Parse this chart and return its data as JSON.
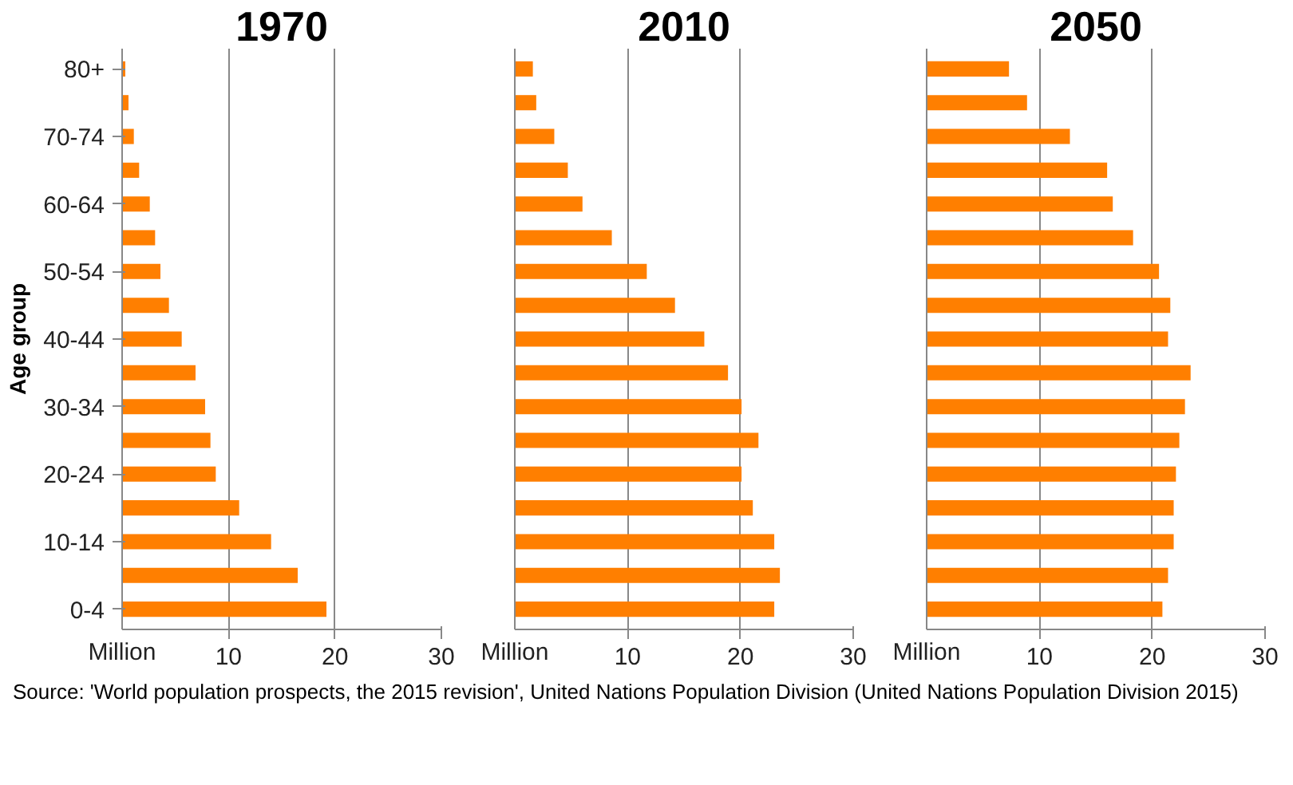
{
  "chart_data": [
    {
      "type": "bar",
      "orientation": "horizontal",
      "title": "1970",
      "ylabel": "Age group",
      "categories": [
        "80+",
        null,
        "70-74",
        null,
        "60-64",
        null,
        "50-54",
        null,
        "40-44",
        null,
        "30-34",
        null,
        "20-24",
        null,
        "10-14",
        null,
        "0-4"
      ],
      "values": [
        0.3,
        0.6,
        1.1,
        1.6,
        2.6,
        3.1,
        3.6,
        4.4,
        5.6,
        6.9,
        7.8,
        8.3,
        8.8,
        11.0,
        14.0,
        16.5,
        19.2
      ],
      "color": "#ff7f00",
      "xlim": [
        0,
        30
      ],
      "xticks": [
        10,
        20,
        30
      ],
      "xlabel": "Million",
      "grid": "x"
    },
    {
      "type": "bar",
      "orientation": "horizontal",
      "title": "2010",
      "categories": [
        null,
        null,
        null,
        null,
        null,
        null,
        null,
        null,
        null,
        null,
        null,
        null,
        null,
        null,
        null,
        null,
        null
      ],
      "values": [
        1.6,
        1.9,
        3.5,
        4.7,
        6.0,
        8.6,
        11.7,
        14.2,
        16.8,
        18.9,
        20.1,
        21.6,
        20.1,
        21.1,
        23.0,
        23.5,
        23.0
      ],
      "color": "#ff7f00",
      "xlim": [
        0,
        30
      ],
      "xticks": [
        10,
        20,
        30
      ],
      "xlabel": "Million",
      "grid": "x",
      "tick_labels": "x"
    },
    {
      "type": "bar",
      "orientation": "horizontal",
      "title": "2050",
      "categories": [
        null,
        null,
        null,
        null,
        null,
        null,
        null,
        null,
        null,
        null,
        null,
        null,
        null,
        null,
        null,
        null,
        null
      ],
      "values": [
        7.3,
        8.9,
        12.7,
        16.0,
        16.5,
        18.3,
        20.6,
        21.6,
        21.4,
        23.4,
        22.9,
        22.4,
        22.1,
        21.9,
        21.9,
        21.4,
        20.9
      ],
      "color": "#ff7f00",
      "xlim": [
        0,
        30
      ],
      "xticks": [
        10,
        20,
        30
      ],
      "xlabel": "Million",
      "grid": "x",
      "tick_labels": "x",
      "annotations": [
        "Source: 'World population prospects, the 2015 revision', United Nations Population Division (United Nations Population Division 2015)"
      ]
    }
  ]
}
